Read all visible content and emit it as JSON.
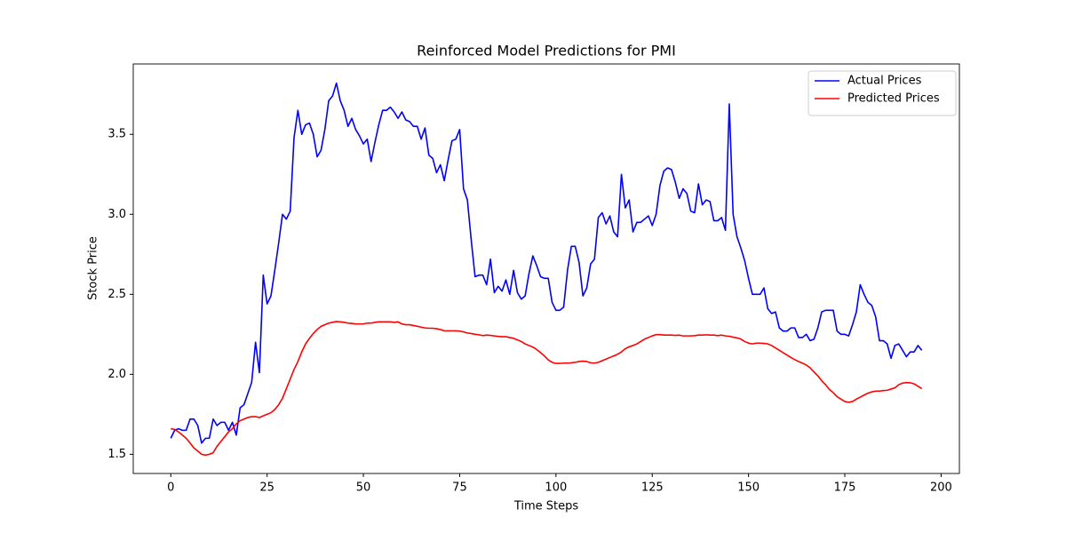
{
  "chart_data": {
    "type": "line",
    "title": "Reinforced Model Predictions for PMI",
    "x_label": "Time Steps",
    "y_label": "Stock Price",
    "x": [
      0,
      1,
      2,
      3,
      4,
      5,
      6,
      7,
      8,
      9,
      10,
      11,
      12,
      13,
      14,
      15,
      16,
      17,
      18,
      19,
      20,
      21,
      22,
      23,
      24,
      25,
      26,
      27,
      28,
      29,
      30,
      31,
      32,
      33,
      34,
      35,
      36,
      37,
      38,
      39,
      40,
      41,
      42,
      43,
      44,
      45,
      46,
      47,
      48,
      49,
      50,
      51,
      52,
      53,
      54,
      55,
      56,
      57,
      58,
      59,
      60,
      61,
      62,
      63,
      64,
      65,
      66,
      67,
      68,
      69,
      70,
      71,
      72,
      73,
      74,
      75,
      76,
      77,
      78,
      79,
      80,
      81,
      82,
      83,
      84,
      85,
      86,
      87,
      88,
      89,
      90,
      91,
      92,
      93,
      94,
      95,
      96,
      97,
      98,
      99,
      100,
      101,
      102,
      103,
      104,
      105,
      106,
      107,
      108,
      109,
      110,
      111,
      112,
      113,
      114,
      115,
      116,
      117,
      118,
      119,
      120,
      121,
      122,
      123,
      124,
      125,
      126,
      127,
      128,
      129,
      130,
      131,
      132,
      133,
      134,
      135,
      136,
      137,
      138,
      139,
      140,
      141,
      142,
      143,
      144,
      145,
      146,
      147,
      148,
      149,
      150,
      151,
      152,
      153,
      154,
      155,
      156,
      157,
      158,
      159,
      160,
      161,
      162,
      163,
      164,
      165,
      166,
      167,
      168,
      169,
      170,
      171,
      172,
      173,
      174,
      175,
      176,
      177,
      178,
      179,
      180,
      181,
      182,
      183,
      184,
      185,
      186,
      187,
      188,
      189,
      190,
      191,
      192,
      193,
      194,
      195
    ],
    "series": [
      {
        "name": "Actual Prices",
        "color": "#0000ff",
        "values": [
          1.6,
          1.65,
          1.66,
          1.65,
          1.65,
          1.72,
          1.72,
          1.68,
          1.57,
          1.6,
          1.6,
          1.72,
          1.68,
          1.7,
          1.7,
          1.65,
          1.7,
          1.62,
          1.79,
          1.81,
          1.88,
          1.95,
          2.2,
          2.01,
          2.62,
          2.44,
          2.49,
          2.65,
          2.82,
          3.0,
          2.97,
          3.02,
          3.48,
          3.65,
          3.5,
          3.56,
          3.57,
          3.5,
          3.36,
          3.4,
          3.53,
          3.71,
          3.74,
          3.82,
          3.71,
          3.65,
          3.55,
          3.6,
          3.53,
          3.49,
          3.44,
          3.47,
          3.33,
          3.45,
          3.56,
          3.65,
          3.65,
          3.67,
          3.64,
          3.6,
          3.64,
          3.59,
          3.58,
          3.55,
          3.55,
          3.47,
          3.54,
          3.37,
          3.35,
          3.26,
          3.31,
          3.21,
          3.34,
          3.46,
          3.47,
          3.53,
          3.16,
          3.09,
          2.84,
          2.61,
          2.62,
          2.62,
          2.56,
          2.72,
          2.51,
          2.55,
          2.52,
          2.59,
          2.5,
          2.65,
          2.51,
          2.47,
          2.49,
          2.63,
          2.74,
          2.68,
          2.61,
          2.6,
          2.6,
          2.45,
          2.4,
          2.4,
          2.42,
          2.65,
          2.8,
          2.8,
          2.7,
          2.49,
          2.54,
          2.69,
          2.72,
          2.98,
          3.01,
          2.94,
          2.99,
          2.89,
          2.86,
          3.25,
          3.04,
          3.09,
          2.89,
          2.95,
          2.95,
          2.97,
          2.99,
          2.93,
          3.0,
          3.18,
          3.27,
          3.29,
          3.28,
          3.2,
          3.1,
          3.16,
          3.13,
          3.02,
          3.01,
          3.19,
          3.06,
          3.09,
          3.08,
          2.96,
          2.96,
          2.98,
          2.9,
          3.69,
          3.0,
          2.86,
          2.79,
          2.71,
          2.6,
          2.5,
          2.5,
          2.5,
          2.54,
          2.41,
          2.38,
          2.39,
          2.29,
          2.27,
          2.27,
          2.29,
          2.29,
          2.23,
          2.23,
          2.25,
          2.21,
          2.22,
          2.29,
          2.39,
          2.4,
          2.4,
          2.4,
          2.27,
          2.25,
          2.25,
          2.24,
          2.31,
          2.39,
          2.56,
          2.5,
          2.45,
          2.43,
          2.36,
          2.21,
          2.21,
          2.19,
          2.1,
          2.18,
          2.19,
          2.15,
          2.11,
          2.14,
          2.14,
          2.18,
          2.15
        ]
      },
      {
        "name": "Predicted Prices",
        "color": "#ff0000",
        "values": [
          1.66,
          1.655,
          1.64,
          1.62,
          1.6,
          1.57,
          1.54,
          1.52,
          1.5,
          1.495,
          1.5,
          1.51,
          1.55,
          1.58,
          1.61,
          1.64,
          1.66,
          1.69,
          1.71,
          1.72,
          1.73,
          1.735,
          1.735,
          1.73,
          1.74,
          1.75,
          1.76,
          1.78,
          1.81,
          1.85,
          1.91,
          1.97,
          2.03,
          2.08,
          2.14,
          2.19,
          2.225,
          2.255,
          2.28,
          2.3,
          2.31,
          2.32,
          2.325,
          2.33,
          2.328,
          2.325,
          2.32,
          2.318,
          2.315,
          2.315,
          2.315,
          2.32,
          2.32,
          2.325,
          2.328,
          2.328,
          2.328,
          2.328,
          2.325,
          2.328,
          2.315,
          2.31,
          2.31,
          2.305,
          2.3,
          2.295,
          2.29,
          2.288,
          2.288,
          2.285,
          2.28,
          2.272,
          2.272,
          2.272,
          2.272,
          2.27,
          2.265,
          2.258,
          2.255,
          2.25,
          2.247,
          2.242,
          2.245,
          2.243,
          2.24,
          2.237,
          2.235,
          2.235,
          2.23,
          2.225,
          2.215,
          2.205,
          2.19,
          2.18,
          2.17,
          2.155,
          2.135,
          2.115,
          2.09,
          2.075,
          2.068,
          2.068,
          2.07,
          2.07,
          2.072,
          2.075,
          2.08,
          2.082,
          2.08,
          2.072,
          2.07,
          2.075,
          2.085,
          2.095,
          2.105,
          2.115,
          2.125,
          2.14,
          2.16,
          2.172,
          2.18,
          2.19,
          2.205,
          2.22,
          2.23,
          2.24,
          2.248,
          2.248,
          2.245,
          2.245,
          2.245,
          2.243,
          2.245,
          2.24,
          2.24,
          2.24,
          2.242,
          2.245,
          2.245,
          2.247,
          2.245,
          2.245,
          2.242,
          2.245,
          2.24,
          2.238,
          2.232,
          2.228,
          2.22,
          2.205,
          2.195,
          2.19,
          2.195,
          2.195,
          2.193,
          2.19,
          2.18,
          2.165,
          2.15,
          2.135,
          2.12,
          2.105,
          2.092,
          2.08,
          2.07,
          2.058,
          2.04,
          2.015,
          1.99,
          1.96,
          1.935,
          1.905,
          1.885,
          1.86,
          1.845,
          1.83,
          1.825,
          1.83,
          1.845,
          1.857,
          1.87,
          1.882,
          1.89,
          1.895,
          1.895,
          1.898,
          1.9,
          1.908,
          1.915,
          1.935,
          1.945,
          1.948,
          1.947,
          1.94,
          1.925,
          1.91
        ]
      }
    ],
    "xlim": [
      -9.75,
      204.75
    ],
    "xticks": [
      0,
      25,
      50,
      75,
      100,
      125,
      150,
      175,
      200
    ],
    "ylim": [
      1.38,
      3.94
    ],
    "yticks": [
      1.5,
      {
        "value": 2,
        "label": "2.0"
      },
      2.5,
      {
        "value": 3,
        "label": "3.0"
      },
      3.5
    ],
    "grid": false,
    "legend": "upper right"
  }
}
